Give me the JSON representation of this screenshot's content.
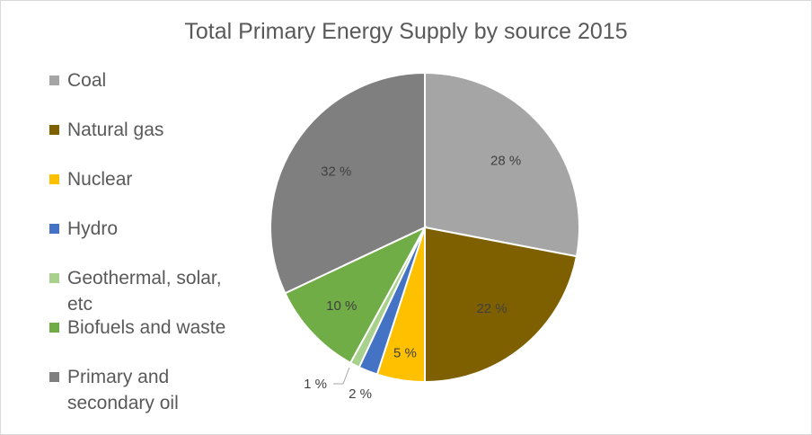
{
  "chart_data": {
    "type": "pie",
    "title": "Total Primary Energy Supply by source 2015",
    "legend_position": "left",
    "slices": [
      {
        "name": "Coal",
        "value": 28,
        "label": "28 %",
        "color": "#a5a5a5"
      },
      {
        "name": "Natural gas",
        "value": 22,
        "label": "22 %",
        "color": "#7f6000"
      },
      {
        "name": "Nuclear",
        "value": 5,
        "label": "5 %",
        "color": "#ffc000"
      },
      {
        "name": "Hydro",
        "value": 2,
        "label": "2 %",
        "color": "#4472c4"
      },
      {
        "name": "Geothermal, solar, etc",
        "value": 1,
        "label": "1 %",
        "color": "#a9d18e"
      },
      {
        "name": "Biofuels and waste",
        "value": 10,
        "label": "10 %",
        "color": "#70ad47"
      },
      {
        "name": "Primary and secondary oil",
        "value": 32,
        "label": "32 %",
        "color": "#7f7f7f"
      }
    ]
  }
}
